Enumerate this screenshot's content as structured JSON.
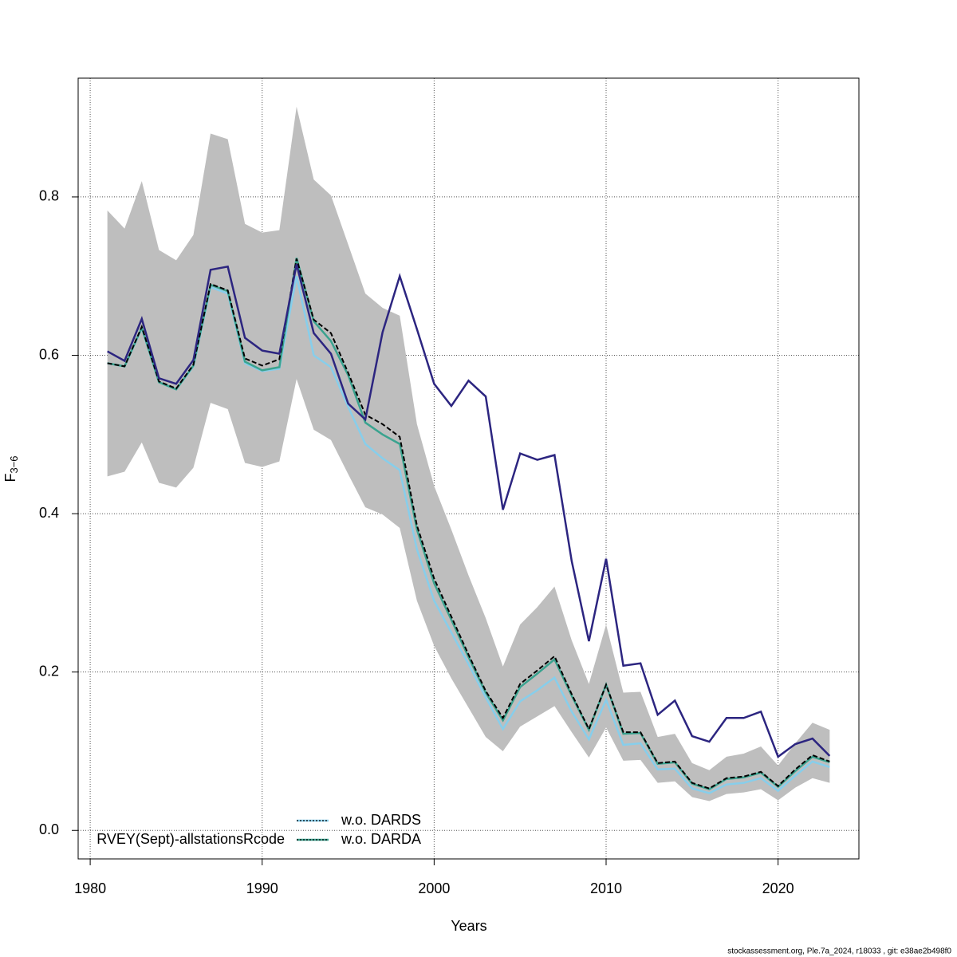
{
  "chart_data": {
    "type": "line",
    "xlabel": "Years",
    "ylabel": "F",
    "ylabel_subscript": "3−6",
    "footer": "stockassessment.org, Ple.7a_2024, r18033 , git: e38ae2b498f0",
    "x": [
      1981,
      1982,
      1983,
      1984,
      1985,
      1986,
      1987,
      1988,
      1989,
      1990,
      1991,
      1992,
      1993,
      1994,
      1995,
      1996,
      1997,
      1998,
      1999,
      2000,
      2001,
      2002,
      2003,
      2004,
      2005,
      2006,
      2007,
      2008,
      2009,
      2010,
      2011,
      2012,
      2013,
      2014,
      2015,
      2016,
      2017,
      2018,
      2019,
      2020,
      2021,
      2022,
      2023
    ],
    "xlim": [
      1979.3,
      2024.7
    ],
    "ylim": [
      -0.036,
      0.95
    ],
    "xticks": [
      1980,
      1990,
      2000,
      2010,
      2020
    ],
    "yticks": [
      {
        "value": 0,
        "label": "0.0"
      },
      0.2,
      0.4,
      0.6,
      0.8
    ],
    "grid": true,
    "band": {
      "color": "#bebebe",
      "upper": [
        0.783,
        0.76,
        0.82,
        0.733,
        0.72,
        0.752,
        0.88,
        0.873,
        0.766,
        0.755,
        0.758,
        0.914,
        0.822,
        0.802,
        0.74,
        0.678,
        0.66,
        0.65,
        0.513,
        0.435,
        0.38,
        0.322,
        0.268,
        0.207,
        0.26,
        0.282,
        0.308,
        0.24,
        0.185,
        0.26,
        0.174,
        0.175,
        0.118,
        0.122,
        0.085,
        0.076,
        0.093,
        0.097,
        0.106,
        0.082,
        0.11,
        0.136,
        0.127
      ],
      "lower": [
        0.447,
        0.453,
        0.49,
        0.439,
        0.433,
        0.458,
        0.54,
        0.532,
        0.464,
        0.459,
        0.466,
        0.57,
        0.506,
        0.493,
        0.45,
        0.408,
        0.399,
        0.382,
        0.29,
        0.233,
        0.192,
        0.155,
        0.118,
        0.1,
        0.131,
        0.144,
        0.157,
        0.124,
        0.092,
        0.13,
        0.088,
        0.089,
        0.06,
        0.062,
        0.042,
        0.037,
        0.046,
        0.048,
        0.052,
        0.038,
        0.054,
        0.066,
        0.06
      ]
    },
    "series": [
      {
        "name": "w.o. DARDS",
        "color": "#87ceeb",
        "values": [
          0.59,
          0.586,
          0.634,
          0.566,
          0.557,
          0.586,
          0.686,
          0.678,
          0.59,
          0.58,
          0.583,
          0.7,
          0.6,
          0.585,
          0.535,
          0.488,
          0.47,
          0.455,
          0.355,
          0.29,
          0.25,
          0.21,
          0.168,
          0.128,
          0.163,
          0.177,
          0.193,
          0.15,
          0.115,
          0.165,
          0.108,
          0.11,
          0.077,
          0.078,
          0.053,
          0.047,
          0.058,
          0.06,
          0.066,
          0.05,
          0.069,
          0.087,
          0.08
        ]
      },
      {
        "name": "w.o. DARDA",
        "color": "#3aa38f",
        "values": [
          0.59,
          0.586,
          0.635,
          0.566,
          0.557,
          0.587,
          0.689,
          0.681,
          0.592,
          0.581,
          0.585,
          0.723,
          0.643,
          0.618,
          0.575,
          0.515,
          0.5,
          0.488,
          0.38,
          0.312,
          0.266,
          0.219,
          0.174,
          0.139,
          0.181,
          0.198,
          0.216,
          0.17,
          0.127,
          0.184,
          0.122,
          0.123,
          0.084,
          0.086,
          0.059,
          0.052,
          0.065,
          0.067,
          0.073,
          0.055,
          0.075,
          0.093,
          0.086
        ]
      },
      {
        "color": "#000000",
        "values": [
          0.59,
          0.586,
          0.636,
          0.567,
          0.558,
          0.588,
          0.69,
          0.682,
          0.596,
          0.587,
          0.595,
          0.722,
          0.645,
          0.628,
          0.578,
          0.525,
          0.513,
          0.497,
          0.385,
          0.318,
          0.27,
          0.222,
          0.176,
          0.142,
          0.185,
          0.202,
          0.22,
          0.172,
          0.128,
          0.184,
          0.124,
          0.124,
          0.085,
          0.087,
          0.06,
          0.053,
          0.066,
          0.068,
          0.074,
          0.056,
          0.077,
          0.095,
          0.087
        ]
      },
      {
        "name": "RVEY(Sept)-allstationsRcode",
        "color": "#2c2580",
        "values": [
          0.605,
          0.593,
          0.646,
          0.571,
          0.564,
          0.594,
          0.708,
          0.712,
          0.622,
          0.606,
          0.602,
          0.715,
          0.628,
          0.602,
          0.539,
          0.519,
          0.629,
          0.7,
          0.633,
          0.564,
          0.536,
          0.568,
          0.548,
          0.405,
          0.476,
          0.468,
          0.474,
          0.34,
          0.239,
          0.343,
          0.208,
          0.211,
          0.146,
          0.164,
          0.119,
          0.112,
          0.142,
          0.142,
          0.15,
          0.093,
          0.109,
          0.116,
          0.094
        ]
      }
    ]
  }
}
